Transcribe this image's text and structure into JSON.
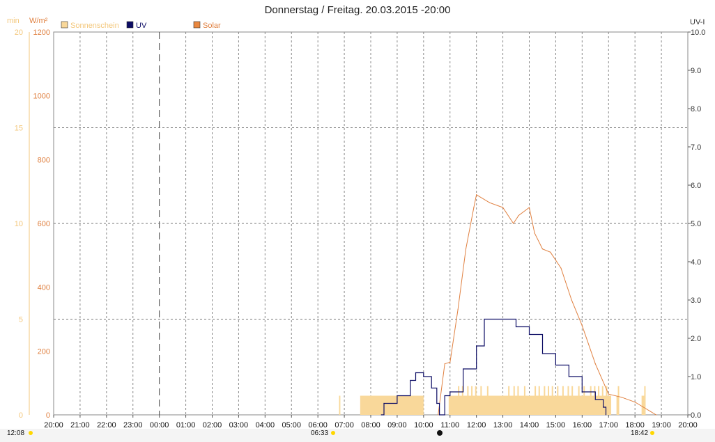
{
  "title": "Donnerstag / Freitag. 20.03.2015  -20:00",
  "units": {
    "sunshine": "min",
    "solar": "W/m²",
    "uv": "UV-I"
  },
  "legend": [
    {
      "name": "Sonnenschein",
      "color": "#f9d89a"
    },
    {
      "name": "UV",
      "color": "#0c0c64"
    },
    {
      "name": "Solar",
      "color": "#e9873f"
    }
  ],
  "colors": {
    "sunshine_axis": "#f3c77b",
    "solar_axis": "#e08040",
    "uv_axis": "#333333",
    "grid": "#666666"
  },
  "sunrise_label": "06:33",
  "sunset_label": "18:42",
  "daylight_label": "12:08",
  "chart_data": {
    "type": "line",
    "x_ticks": [
      "20:00",
      "21:00",
      "22:00",
      "23:00",
      "00:00",
      "01:00",
      "02:00",
      "03:00",
      "04:00",
      "05:00",
      "06:00",
      "07:00",
      "08:00",
      "09:00",
      "10:00",
      "11:00",
      "12:00",
      "13:00",
      "14:00",
      "15:00",
      "16:00",
      "17:00",
      "18:00",
      "19:00",
      "20:00"
    ],
    "y_left_sunshine": {
      "label": "min",
      "ylim": [
        0,
        20
      ],
      "ticks": [
        0,
        5,
        10,
        15,
        20
      ]
    },
    "y_left_solar": {
      "label": "W/m²",
      "ylim": [
        0,
        1200
      ],
      "ticks": [
        0,
        200,
        400,
        600,
        800,
        1000,
        1200
      ]
    },
    "y_right_uv": {
      "label": "UV-I",
      "ylim": [
        0,
        10
      ],
      "ticks": [
        "0.0",
        "1.0",
        "2.0",
        "3.0",
        "4.0",
        "5.0",
        "6.0",
        "7.0",
        "8.0",
        "9.0",
        "10.0"
      ]
    },
    "grid": true,
    "midnight_marker": "00:00",
    "series": [
      {
        "name": "Solar",
        "hours": [
          10.55,
          10.8,
          11.0,
          11.3,
          11.6,
          11.9,
          12.0,
          12.5,
          13.0,
          13.4,
          13.6,
          14.0,
          14.2,
          14.5,
          14.8,
          15.2,
          15.6,
          16.0,
          16.5,
          17.0,
          17.5,
          18.0,
          18.3,
          18.6,
          18.8
        ],
        "values": [
          0,
          160,
          165,
          330,
          520,
          650,
          690,
          665,
          650,
          600,
          625,
          650,
          570,
          520,
          510,
          460,
          360,
          280,
          160,
          65,
          55,
          40,
          25,
          10,
          0
        ]
      },
      {
        "name": "UV",
        "hours": [
          8.4,
          8.5,
          9.0,
          9.5,
          9.7,
          10.0,
          10.3,
          10.5,
          10.6,
          10.8,
          11.0,
          11.5,
          12.0,
          12.3,
          13.0,
          13.5,
          14.0,
          14.5,
          15.0,
          15.5,
          16.0,
          16.5,
          16.8,
          16.9
        ],
        "values": [
          0.0,
          0.3,
          0.5,
          0.9,
          1.1,
          1.0,
          0.7,
          0.3,
          0.0,
          0.5,
          0.6,
          1.2,
          1.8,
          2.5,
          2.5,
          2.3,
          2.1,
          1.6,
          1.3,
          1.0,
          0.6,
          0.4,
          0.2,
          0.0
        ]
      },
      {
        "name": "Sonnenschein",
        "intervals": [
          [
            6.8,
            6.85
          ],
          [
            7.6,
            10.0
          ],
          [
            10.95,
            17.1
          ],
          [
            17.3,
            17.4
          ],
          [
            18.25,
            18.35
          ]
        ],
        "value": 1,
        "spikes_hours": [
          11.3,
          11.45,
          11.65,
          11.8,
          11.95,
          12.15,
          12.4,
          13.2,
          13.4,
          13.55,
          13.8,
          14.2,
          14.35,
          14.55,
          14.7,
          14.85,
          15.05,
          15.25,
          15.45,
          15.6,
          15.85,
          16.05,
          16.3,
          16.45,
          16.6,
          16.75,
          16.9,
          17.35,
          18.35
        ],
        "spike_value": 1.5
      }
    ]
  }
}
